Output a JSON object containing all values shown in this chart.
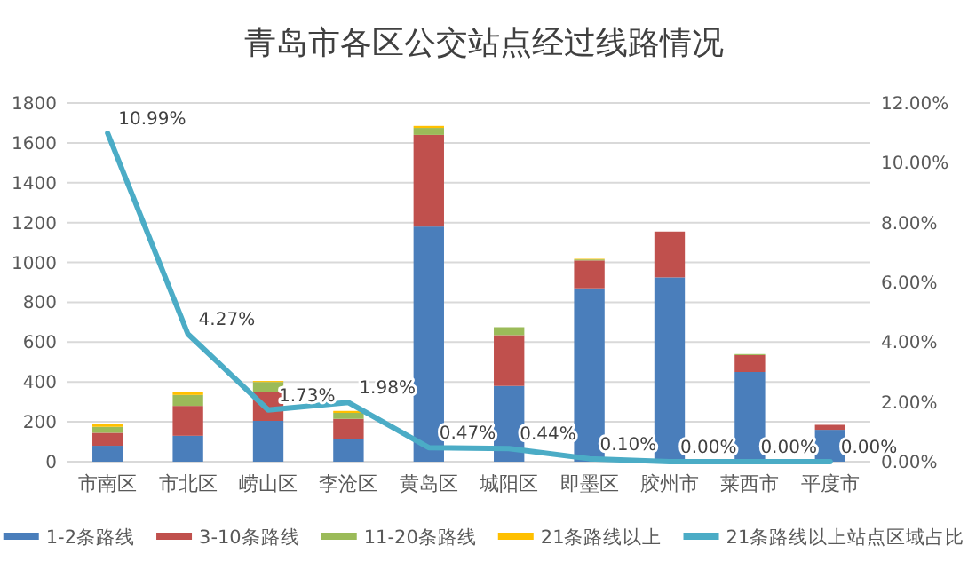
{
  "chart_data": {
    "type": "bar",
    "title": "青岛市各区公交站点经过线路情况",
    "categories": [
      "市南区",
      "市北区",
      "崂山区",
      "李沧区",
      "黄岛区",
      "城阳区",
      "即墨区",
      "胶州市",
      "莱西市",
      "平度市"
    ],
    "stacked": true,
    "series": [
      {
        "name": "1-2条路线",
        "color": "#4a7ebb",
        "values": [
          80,
          130,
          205,
          115,
          1180,
          380,
          870,
          925,
          450,
          160
        ]
      },
      {
        "name": "3-10条路线",
        "color": "#c0504d",
        "values": [
          65,
          150,
          145,
          100,
          460,
          255,
          140,
          230,
          85,
          25
        ]
      },
      {
        "name": "11-20条路线",
        "color": "#9bbb59",
        "values": [
          30,
          55,
          50,
          30,
          35,
          40,
          5,
          0,
          5,
          0
        ]
      },
      {
        "name": "21条路线以上",
        "color": "#ffc000",
        "values": [
          15,
          15,
          5,
          10,
          10,
          0,
          3,
          0,
          0,
          0
        ]
      },
      {
        "name": "21条路线以上站点区域占比",
        "type": "line",
        "axis": "y2",
        "color": "#4bacc6",
        "values": [
          10.99,
          4.27,
          1.73,
          1.98,
          0.47,
          0.44,
          0.1,
          0.0,
          0.0,
          0.0
        ],
        "value_labels": [
          "10.99%",
          "4.27%",
          "1.73%",
          "1.98%",
          "0.47%",
          "0.44%",
          "0.10%",
          "0.00%",
          "0.00%",
          "0.00%"
        ]
      }
    ],
    "ylim": [
      0,
      1800
    ],
    "yticks": [
      0,
      200,
      400,
      600,
      800,
      1000,
      1200,
      1400,
      1600,
      1800
    ],
    "y2lim": [
      0,
      12
    ],
    "y2ticks": [
      {
        "value": 0,
        "label": "0.00%"
      },
      {
        "value": 2,
        "label": "2.00%"
      },
      {
        "value": 4,
        "label": "4.00%"
      },
      {
        "value": 6,
        "label": "6.00%"
      },
      {
        "value": 8,
        "label": "8.00%"
      },
      {
        "value": 10,
        "label": "10.00%"
      },
      {
        "value": 12,
        "label": "12.00%"
      }
    ],
    "grid": "y",
    "legend": "bottom"
  }
}
